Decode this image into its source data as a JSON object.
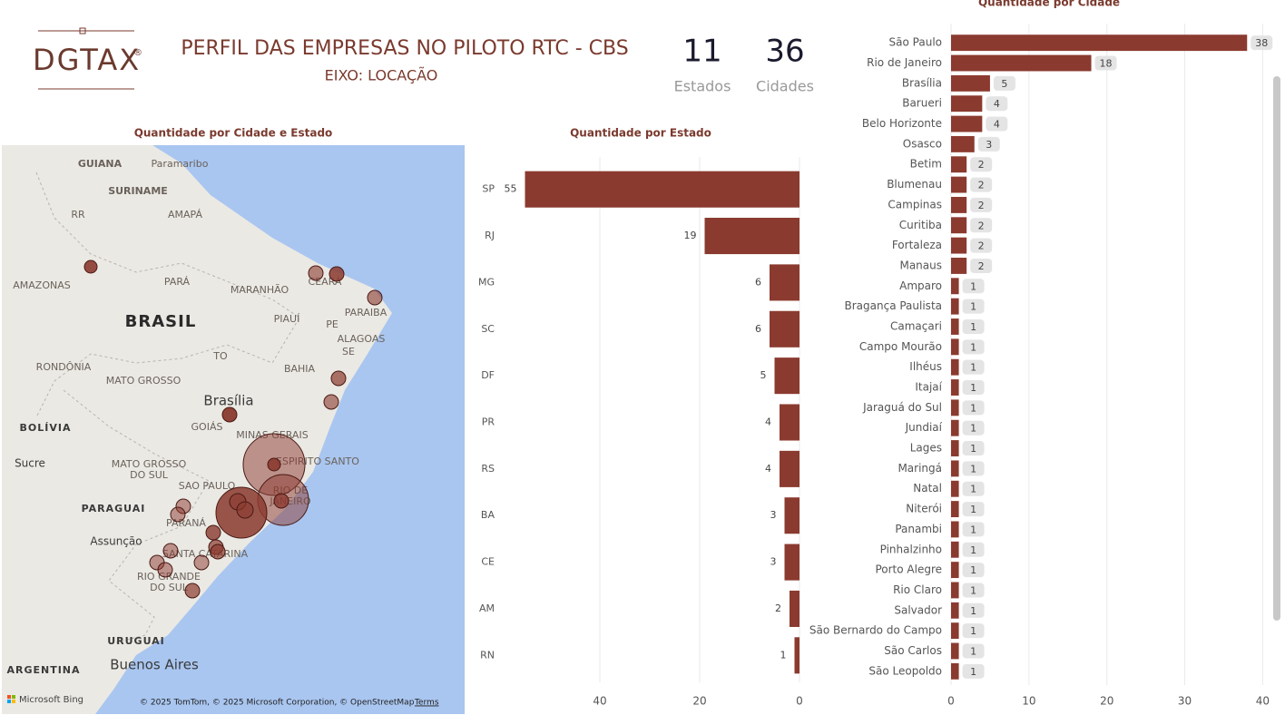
{
  "header": {
    "logo": "DGTAX",
    "logo_mark": "®",
    "title": "PERFIL DAS EMPRESAS NO PILOTO RTC - CBS",
    "subtitle": "EIXO: LOCAÇÃO"
  },
  "kpis": [
    {
      "value": "11",
      "label": "Estados"
    },
    {
      "value": "36",
      "label": "Cidades"
    }
  ],
  "map": {
    "title": "Quantidade por Cidade e Estado",
    "labels": [
      "GUIANA",
      "Paramaribo",
      "SURINAME",
      "RR",
      "AMAPÁ",
      "AMAZONAS",
      "PARÁ",
      "MARANHÃO",
      "CEARÁ",
      "PARAIBA",
      "BRASIL",
      "PIAUÍ",
      "PE",
      "ALAGOAS",
      "SE",
      "TO",
      "RONDÔNIA",
      "MATO GROSSO",
      "BAHIA",
      "Brasília",
      "BOLÍVIA",
      "GOIÁS",
      "MINAS GERAIS",
      "ESPIRITO SANTO",
      "Sucre",
      "MATO GROSSO",
      "DO SUL",
      "SAO PAULO",
      "RIO DE",
      "JANEIRO",
      "PARAGUAI",
      "PARANÁ",
      "Assunção",
      "SANTA CATARINA",
      "RIO GRANDE",
      "DO SUL",
      "URUGUAI",
      "Buenos Aires",
      "ARGENTINA"
    ],
    "brand": "Microsoft Bing",
    "attribution": "© 2025 TomTom, © 2025 Microsoft Corporation, © OpenStreetMap",
    "terms": "Terms"
  },
  "chart_data": [
    {
      "type": "bar",
      "title": "Quantidade por Estado",
      "orientation": "horizontal",
      "x_reversed": true,
      "categories": [
        "SP",
        "RJ",
        "MG",
        "SC",
        "DF",
        "PR",
        "RS",
        "BA",
        "CE",
        "AM",
        "RN"
      ],
      "values": [
        55,
        19,
        6,
        6,
        5,
        4,
        4,
        3,
        3,
        2,
        1
      ],
      "color": "#8b3a2f",
      "xlim": [
        0,
        66
      ],
      "xticks": [
        0,
        20,
        40
      ],
      "grid": true
    },
    {
      "type": "bar",
      "title": "Quantidade por Cidade",
      "orientation": "horizontal",
      "x_reversed": false,
      "categories": [
        "São Paulo",
        "Rio de Janeiro",
        "Brasília",
        "Barueri",
        "Belo Horizonte",
        "Osasco",
        "Betim",
        "Blumenau",
        "Campinas",
        "Curitiba",
        "Fortaleza",
        "Manaus",
        "Amparo",
        "Bragança Paulista",
        "Camaçari",
        "Campo Mourão",
        "Ilhéus",
        "Itajaí",
        "Jaraguá do Sul",
        "Jundiaí",
        "Lages",
        "Maringá",
        "Natal",
        "Niterói",
        "Panambi",
        "Pinhalzinho",
        "Porto Alegre",
        "Rio Claro",
        "Salvador",
        "São Bernardo do Campo",
        "São Carlos",
        "São Leopoldo"
      ],
      "values": [
        38,
        18,
        5,
        4,
        4,
        3,
        2,
        2,
        2,
        2,
        2,
        2,
        1,
        1,
        1,
        1,
        1,
        1,
        1,
        1,
        1,
        1,
        1,
        1,
        1,
        1,
        1,
        1,
        1,
        1,
        1,
        1
      ],
      "color": "#8b3a2f",
      "xlim": [
        0,
        41
      ],
      "xticks": [
        0,
        10,
        20,
        30,
        40
      ],
      "grid": true
    }
  ]
}
